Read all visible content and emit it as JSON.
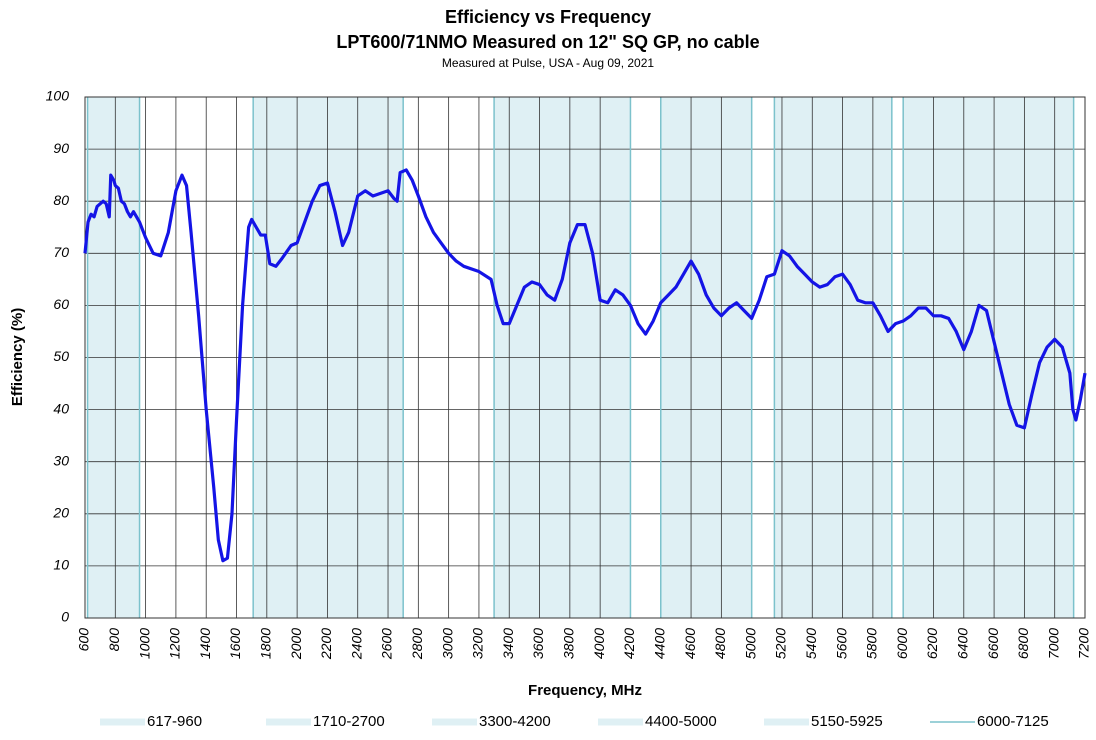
{
  "chart_data": {
    "type": "line",
    "title": "Efficiency vs Frequency",
    "subtitle": "LPT600/71NMO Measured on 12\" SQ GP, no cable",
    "caption": "Measured at Pulse, USA - Aug 09, 2021",
    "xlabel": "Frequency, MHz",
    "ylabel": "Efficiency (%)",
    "xlim": [
      600,
      7200
    ],
    "ylim": [
      0,
      100
    ],
    "xticks": [
      600,
      800,
      1000,
      1200,
      1400,
      1600,
      1800,
      2000,
      2200,
      2400,
      2600,
      2800,
      3000,
      3200,
      3400,
      3600,
      3800,
      4000,
      4200,
      4400,
      4600,
      4800,
      5000,
      5200,
      5400,
      5600,
      5800,
      6000,
      6200,
      6400,
      6600,
      6800,
      7000,
      7200
    ],
    "yticks": [
      0,
      10,
      20,
      30,
      40,
      50,
      60,
      70,
      80,
      90,
      100
    ],
    "grid": true,
    "band_color": "#dff0f4",
    "band_edge_color": "#7cc2cc",
    "bands": [
      {
        "name": "617-960",
        "start": 617,
        "end": 960
      },
      {
        "name": "1710-2700",
        "start": 1710,
        "end": 2700
      },
      {
        "name": "3300-4200",
        "start": 3300,
        "end": 4200
      },
      {
        "name": "4400-5000",
        "start": 4400,
        "end": 5000
      },
      {
        "name": "5150-5925",
        "start": 5150,
        "end": 5925
      },
      {
        "name": "6000-7125",
        "start": 6000,
        "end": 7125
      }
    ],
    "x": [
      600,
      620,
      640,
      660,
      680,
      700,
      720,
      740,
      760,
      770,
      790,
      800,
      820,
      840,
      860,
      880,
      900,
      920,
      940,
      960,
      1000,
      1050,
      1100,
      1150,
      1200,
      1240,
      1270,
      1300,
      1350,
      1400,
      1450,
      1480,
      1510,
      1540,
      1570,
      1600,
      1640,
      1680,
      1700,
      1730,
      1760,
      1790,
      1820,
      1860,
      1900,
      1960,
      2000,
      2050,
      2100,
      2150,
      2200,
      2250,
      2300,
      2340,
      2400,
      2450,
      2500,
      2550,
      2600,
      2640,
      2660,
      2680,
      2720,
      2760,
      2800,
      2850,
      2900,
      2950,
      3000,
      3050,
      3100,
      3200,
      3280,
      3320,
      3360,
      3400,
      3450,
      3500,
      3550,
      3600,
      3650,
      3700,
      3750,
      3800,
      3850,
      3900,
      3950,
      4000,
      4050,
      4100,
      4150,
      4200,
      4250,
      4300,
      4350,
      4400,
      4450,
      4500,
      4550,
      4600,
      4650,
      4700,
      4750,
      4800,
      4850,
      4900,
      4950,
      5000,
      5050,
      5100,
      5150,
      5200,
      5250,
      5300,
      5350,
      5400,
      5450,
      5500,
      5550,
      5600,
      5650,
      5700,
      5750,
      5800,
      5850,
      5900,
      5950,
      6000,
      6050,
      6100,
      6150,
      6200,
      6250,
      6300,
      6350,
      6400,
      6450,
      6500,
      6550,
      6600,
      6650,
      6700,
      6750,
      6800,
      6850,
      6900,
      6950,
      7000,
      7050,
      7100,
      7120,
      7140,
      7170,
      7200
    ],
    "series": [
      {
        "color": "#1414e6",
        "values": [
          70,
          76,
          77.5,
          77,
          79,
          79.5,
          80,
          79.5,
          77,
          85,
          84,
          83,
          82.5,
          80,
          79.5,
          78,
          77,
          78,
          77,
          76,
          73,
          70,
          69.5,
          74,
          82,
          85,
          83,
          74,
          58,
          40,
          25,
          15,
          11,
          11.5,
          20,
          38,
          60,
          75,
          76.5,
          75,
          73.5,
          73.5,
          68,
          67.5,
          69,
          71.5,
          72,
          76,
          80,
          83,
          83.5,
          78,
          71.5,
          74,
          81,
          82,
          81,
          81.5,
          82,
          80.5,
          80,
          85.5,
          86,
          84,
          81,
          77,
          74,
          72,
          70,
          68.5,
          67.5,
          66.5,
          65,
          60,
          56.5,
          56.5,
          60,
          63.5,
          64.5,
          64,
          62,
          61,
          65,
          72,
          75.5,
          75.5,
          70,
          61,
          60.5,
          63,
          62,
          60,
          56.5,
          54.5,
          57,
          60.5,
          62,
          63.5,
          66,
          68.5,
          66,
          62,
          59.5,
          58,
          59.5,
          60.5,
          59,
          57.5,
          61,
          65.5,
          66,
          70.5,
          69.5,
          67.5,
          66,
          64.5,
          63.5,
          64,
          65.5,
          66,
          64,
          61,
          60.5,
          60.5,
          58,
          55,
          56.5,
          57,
          58,
          59.5,
          59.5,
          58,
          58,
          57.5,
          55,
          51.5,
          55,
          60,
          59,
          53,
          47,
          41,
          37,
          36.5,
          43,
          49,
          52,
          53.5,
          52,
          47,
          40,
          38,
          42,
          47
        ]
      }
    ]
  }
}
